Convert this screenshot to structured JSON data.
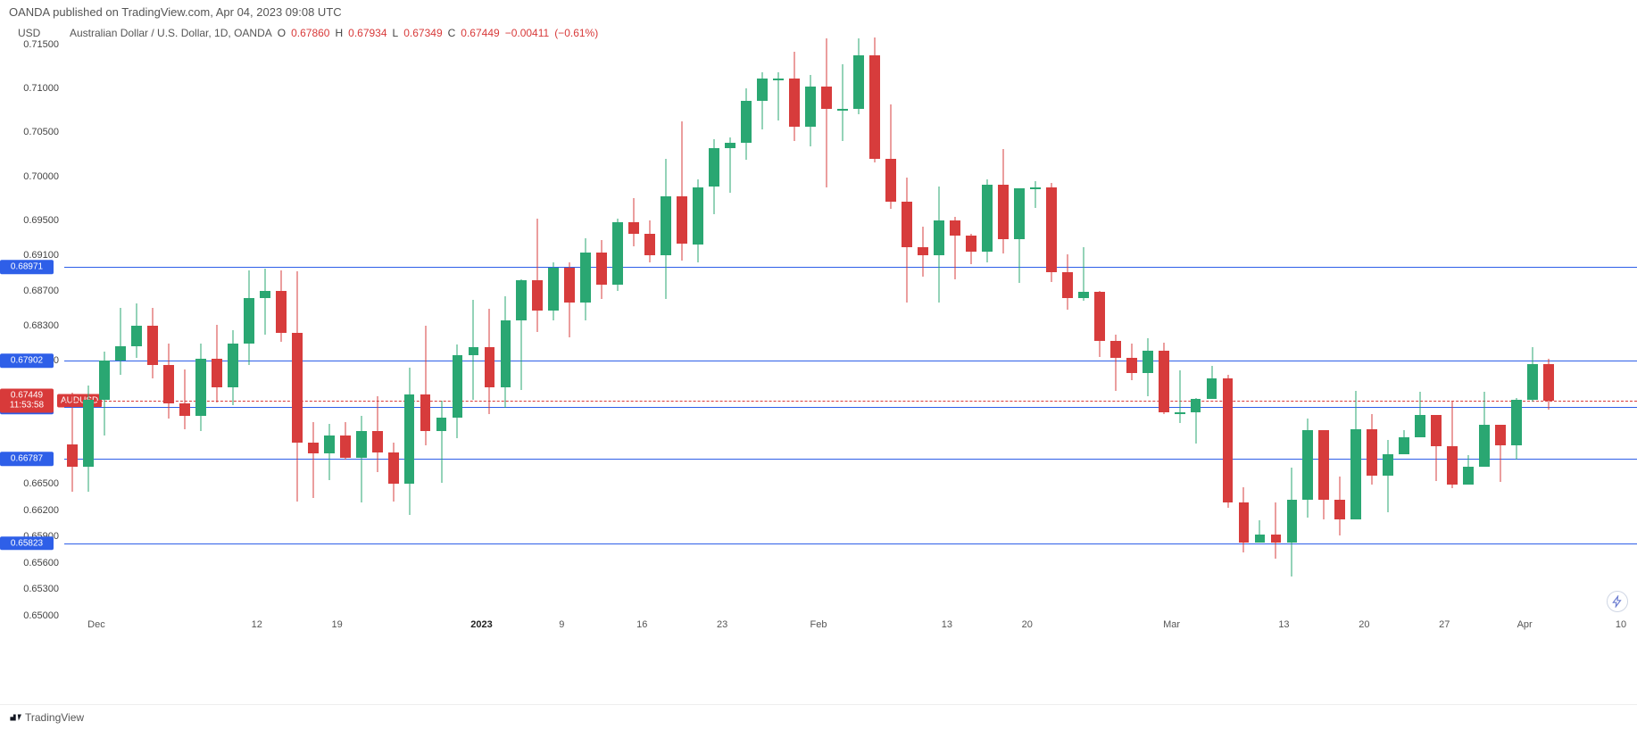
{
  "header": {
    "published_line": "OANDA published on TradingView.com, Apr 04, 2023 09:08 UTC"
  },
  "legend": {
    "usd": "USD",
    "symbol": "Australian Dollar / U.S. Dollar, 1D, OANDA",
    "o_label": "O",
    "o_val": "0.67860",
    "h_label": "H",
    "h_val": "0.67934",
    "l_label": "L",
    "l_val": "0.67349",
    "c_label": "C",
    "c_val": "0.67449",
    "chg": "−0.00411",
    "chg_pct": "(−0.61%)",
    "red": "#d83a3a"
  },
  "axis": {
    "ymin": 0.65,
    "ymax": 0.715,
    "yticks": [
      0.715,
      0.71,
      0.705,
      0.7,
      0.695,
      0.691,
      0.687,
      0.683,
      0.679,
      0.665,
      0.662,
      0.659,
      0.656,
      0.653,
      0.65
    ],
    "ytick_labels": [
      "0.71500",
      "0.71000",
      "0.70500",
      "0.70000",
      "0.69500",
      "0.69100",
      "0.68700",
      "0.68300",
      "0.67900",
      "0.66500",
      "0.66200",
      "0.65900",
      "0.65600",
      "0.65300",
      "0.65000"
    ],
    "text_color": "#444"
  },
  "xaxis": {
    "labels": [
      {
        "i": 2,
        "text": "Dec",
        "bold": false
      },
      {
        "i": 12,
        "text": "12",
        "bold": false
      },
      {
        "i": 17,
        "text": "19",
        "bold": false
      },
      {
        "i": 26,
        "text": "2023",
        "bold": true
      },
      {
        "i": 31,
        "text": "9",
        "bold": false
      },
      {
        "i": 36,
        "text": "16",
        "bold": false
      },
      {
        "i": 41,
        "text": "23",
        "bold": false
      },
      {
        "i": 47,
        "text": "Feb",
        "bold": false
      },
      {
        "i": 55,
        "text": "13",
        "bold": false
      },
      {
        "i": 60,
        "text": "20",
        "bold": false
      },
      {
        "i": 69,
        "text": "Mar",
        "bold": false
      },
      {
        "i": 76,
        "text": "13",
        "bold": false
      },
      {
        "i": 81,
        "text": "20",
        "bold": false
      },
      {
        "i": 86,
        "text": "27",
        "bold": false
      },
      {
        "i": 91,
        "text": "Apr",
        "bold": false
      },
      {
        "i": 97,
        "text": "10",
        "bold": false
      }
    ]
  },
  "hlines": [
    {
      "y": 0.68971,
      "label": "0.68971",
      "color": "#2e5fe8",
      "box": "#2e5fe8"
    },
    {
      "y": 0.67902,
      "label": "0.67902",
      "color": "#2e5fe8",
      "box": "#2e5fe8"
    },
    {
      "y": 0.67374,
      "label": "0.67374",
      "color": "#2e5fe8",
      "box": "#2e5fe8"
    },
    {
      "y": 0.66787,
      "label": "0.66787",
      "color": "#2e5fe8",
      "box": "#2e5fe8"
    },
    {
      "y": 0.65823,
      "label": "0.65823",
      "color": "#2e5fe8",
      "box": "#2e5fe8"
    }
  ],
  "price_line": {
    "y": 0.67449,
    "label": "0.67449",
    "countdown": "11:53:58",
    "box_bg": "#d83a3a",
    "ticker_box": "AUDUSD",
    "ticker_bg": "#d83a3a",
    "line_color": "#d83a3a"
  },
  "colors": {
    "up": "#2aa772",
    "up_border": "#2aa772",
    "down": "#d73c3c",
    "down_border": "#d73c3c",
    "bg": "#ffffff"
  },
  "candles": [
    {
      "o": 0.6695,
      "h": 0.6754,
      "l": 0.6641,
      "c": 0.667
    },
    {
      "o": 0.667,
      "h": 0.6762,
      "l": 0.6641,
      "c": 0.6746
    },
    {
      "o": 0.6746,
      "h": 0.6801,
      "l": 0.6705,
      "c": 0.679
    },
    {
      "o": 0.679,
      "h": 0.685,
      "l": 0.6774,
      "c": 0.6807
    },
    {
      "o": 0.6807,
      "h": 0.6855,
      "l": 0.6793,
      "c": 0.683
    },
    {
      "o": 0.683,
      "h": 0.685,
      "l": 0.677,
      "c": 0.6785
    },
    {
      "o": 0.6785,
      "h": 0.681,
      "l": 0.6724,
      "c": 0.6742
    },
    {
      "o": 0.6742,
      "h": 0.678,
      "l": 0.6712,
      "c": 0.6727
    },
    {
      "o": 0.6727,
      "h": 0.681,
      "l": 0.671,
      "c": 0.6792
    },
    {
      "o": 0.6792,
      "h": 0.6831,
      "l": 0.6743,
      "c": 0.676
    },
    {
      "o": 0.676,
      "h": 0.6825,
      "l": 0.674,
      "c": 0.681
    },
    {
      "o": 0.681,
      "h": 0.6893,
      "l": 0.6785,
      "c": 0.6862
    },
    {
      "o": 0.6862,
      "h": 0.6895,
      "l": 0.682,
      "c": 0.687
    },
    {
      "o": 0.687,
      "h": 0.6893,
      "l": 0.6812,
      "c": 0.6822
    },
    {
      "o": 0.6822,
      "h": 0.6892,
      "l": 0.663,
      "c": 0.6697
    },
    {
      "o": 0.6697,
      "h": 0.672,
      "l": 0.6634,
      "c": 0.6685
    },
    {
      "o": 0.6685,
      "h": 0.6718,
      "l": 0.6654,
      "c": 0.6705
    },
    {
      "o": 0.6705,
      "h": 0.672,
      "l": 0.6678,
      "c": 0.668
    },
    {
      "o": 0.668,
      "h": 0.6727,
      "l": 0.6629,
      "c": 0.671
    },
    {
      "o": 0.671,
      "h": 0.675,
      "l": 0.6664,
      "c": 0.6686
    },
    {
      "o": 0.6686,
      "h": 0.6697,
      "l": 0.663,
      "c": 0.665
    },
    {
      "o": 0.665,
      "h": 0.6782,
      "l": 0.6615,
      "c": 0.6752
    },
    {
      "o": 0.6752,
      "h": 0.683,
      "l": 0.6694,
      "c": 0.671
    },
    {
      "o": 0.671,
      "h": 0.6745,
      "l": 0.6651,
      "c": 0.6725
    },
    {
      "o": 0.6725,
      "h": 0.6809,
      "l": 0.6702,
      "c": 0.6797
    },
    {
      "o": 0.6797,
      "h": 0.686,
      "l": 0.6746,
      "c": 0.6806
    },
    {
      "o": 0.6806,
      "h": 0.6849,
      "l": 0.673,
      "c": 0.676
    },
    {
      "o": 0.676,
      "h": 0.6864,
      "l": 0.6737,
      "c": 0.6836
    },
    {
      "o": 0.6836,
      "h": 0.6883,
      "l": 0.6757,
      "c": 0.6882
    },
    {
      "o": 0.6882,
      "h": 0.6952,
      "l": 0.6823,
      "c": 0.6847
    },
    {
      "o": 0.6847,
      "h": 0.6902,
      "l": 0.6836,
      "c": 0.6896
    },
    {
      "o": 0.6896,
      "h": 0.6902,
      "l": 0.6817,
      "c": 0.6856
    },
    {
      "o": 0.6856,
      "h": 0.693,
      "l": 0.6836,
      "c": 0.6913
    },
    {
      "o": 0.6913,
      "h": 0.6928,
      "l": 0.6861,
      "c": 0.6877
    },
    {
      "o": 0.6877,
      "h": 0.6952,
      "l": 0.687,
      "c": 0.6948
    },
    {
      "o": 0.6948,
      "h": 0.6975,
      "l": 0.692,
      "c": 0.6935
    },
    {
      "o": 0.6935,
      "h": 0.695,
      "l": 0.6902,
      "c": 0.691
    },
    {
      "o": 0.691,
      "h": 0.702,
      "l": 0.6861,
      "c": 0.6977
    },
    {
      "o": 0.6977,
      "h": 0.7063,
      "l": 0.6904,
      "c": 0.6923
    },
    {
      "o": 0.6923,
      "h": 0.6997,
      "l": 0.6902,
      "c": 0.6988
    },
    {
      "o": 0.6988,
      "h": 0.7042,
      "l": 0.6957,
      "c": 0.7032
    },
    {
      "o": 0.7032,
      "h": 0.7044,
      "l": 0.6981,
      "c": 0.7038
    },
    {
      "o": 0.7038,
      "h": 0.71,
      "l": 0.7019,
      "c": 0.7086
    },
    {
      "o": 0.7086,
      "h": 0.7119,
      "l": 0.7054,
      "c": 0.7111
    },
    {
      "o": 0.7111,
      "h": 0.7119,
      "l": 0.7064,
      "c": 0.7111
    },
    {
      "o": 0.7111,
      "h": 0.7142,
      "l": 0.704,
      "c": 0.7057
    },
    {
      "o": 0.7057,
      "h": 0.7115,
      "l": 0.7034,
      "c": 0.7102
    },
    {
      "o": 0.7102,
      "h": 0.7157,
      "l": 0.6987,
      "c": 0.7077
    },
    {
      "o": 0.7077,
      "h": 0.7128,
      "l": 0.704,
      "c": 0.7077
    },
    {
      "o": 0.7077,
      "h": 0.7157,
      "l": 0.7071,
      "c": 0.7138
    },
    {
      "o": 0.7138,
      "h": 0.7158,
      "l": 0.7016,
      "c": 0.702
    },
    {
      "o": 0.702,
      "h": 0.7082,
      "l": 0.6963,
      "c": 0.6971
    },
    {
      "o": 0.6971,
      "h": 0.6999,
      "l": 0.6856,
      "c": 0.6919
    },
    {
      "o": 0.6919,
      "h": 0.6943,
      "l": 0.6886,
      "c": 0.691
    },
    {
      "o": 0.691,
      "h": 0.6989,
      "l": 0.6856,
      "c": 0.695
    },
    {
      "o": 0.695,
      "h": 0.6954,
      "l": 0.6883,
      "c": 0.6933
    },
    {
      "o": 0.6933,
      "h": 0.6935,
      "l": 0.69,
      "c": 0.6914
    },
    {
      "o": 0.6914,
      "h": 0.6997,
      "l": 0.6902,
      "c": 0.6991
    },
    {
      "o": 0.6991,
      "h": 0.7031,
      "l": 0.6912,
      "c": 0.6929
    },
    {
      "o": 0.6929,
      "h": 0.6986,
      "l": 0.6879,
      "c": 0.6986
    },
    {
      "o": 0.6986,
      "h": 0.6995,
      "l": 0.6964,
      "c": 0.6987
    },
    {
      "o": 0.6987,
      "h": 0.6993,
      "l": 0.688,
      "c": 0.6891
    },
    {
      "o": 0.6891,
      "h": 0.6911,
      "l": 0.6848,
      "c": 0.6862
    },
    {
      "o": 0.6862,
      "h": 0.6919,
      "l": 0.6858,
      "c": 0.6869
    },
    {
      "o": 0.6869,
      "h": 0.687,
      "l": 0.6795,
      "c": 0.6813
    },
    {
      "o": 0.6813,
      "h": 0.682,
      "l": 0.6756,
      "c": 0.6794
    },
    {
      "o": 0.6794,
      "h": 0.681,
      "l": 0.6768,
      "c": 0.6776
    },
    {
      "o": 0.6776,
      "h": 0.6816,
      "l": 0.675,
      "c": 0.6802
    },
    {
      "o": 0.6802,
      "h": 0.6811,
      "l": 0.673,
      "c": 0.6732
    },
    {
      "o": 0.6732,
      "h": 0.6779,
      "l": 0.6719,
      "c": 0.6732
    },
    {
      "o": 0.6732,
      "h": 0.6748,
      "l": 0.6696,
      "c": 0.6747
    },
    {
      "o": 0.6747,
      "h": 0.6784,
      "l": 0.6764,
      "c": 0.677
    },
    {
      "o": 0.677,
      "h": 0.6774,
      "l": 0.6623,
      "c": 0.6629
    },
    {
      "o": 0.6629,
      "h": 0.6646,
      "l": 0.6572,
      "c": 0.6583
    },
    {
      "o": 0.6583,
      "h": 0.6609,
      "l": 0.6583,
      "c": 0.6592
    },
    {
      "o": 0.6592,
      "h": 0.6629,
      "l": 0.6565,
      "c": 0.6583
    },
    {
      "o": 0.6583,
      "h": 0.6669,
      "l": 0.6545,
      "c": 0.6632
    },
    {
      "o": 0.6632,
      "h": 0.6724,
      "l": 0.6612,
      "c": 0.6711
    },
    {
      "o": 0.6711,
      "h": 0.6705,
      "l": 0.661,
      "c": 0.6632
    },
    {
      "o": 0.6632,
      "h": 0.6658,
      "l": 0.6591,
      "c": 0.661
    },
    {
      "o": 0.661,
      "h": 0.6756,
      "l": 0.6627,
      "c": 0.6712
    },
    {
      "o": 0.6712,
      "h": 0.673,
      "l": 0.6649,
      "c": 0.6659
    },
    {
      "o": 0.6659,
      "h": 0.67,
      "l": 0.6618,
      "c": 0.6684
    },
    {
      "o": 0.6684,
      "h": 0.6711,
      "l": 0.6702,
      "c": 0.6703
    },
    {
      "o": 0.6703,
      "h": 0.6755,
      "l": 0.6703,
      "c": 0.6729
    },
    {
      "o": 0.6729,
      "h": 0.6708,
      "l": 0.6653,
      "c": 0.6693
    },
    {
      "o": 0.6693,
      "h": 0.6744,
      "l": 0.6645,
      "c": 0.6649
    },
    {
      "o": 0.6649,
      "h": 0.6683,
      "l": 0.6654,
      "c": 0.667
    },
    {
      "o": 0.667,
      "h": 0.6755,
      "l": 0.6683,
      "c": 0.6717
    },
    {
      "o": 0.6717,
      "h": 0.6716,
      "l": 0.6652,
      "c": 0.6694
    },
    {
      "o": 0.6694,
      "h": 0.6748,
      "l": 0.6678,
      "c": 0.6746
    },
    {
      "o": 0.6746,
      "h": 0.6806,
      "l": 0.6744,
      "c": 0.6786
    },
    {
      "o": 0.6786,
      "h": 0.6793,
      "l": 0.6735,
      "c": 0.6745
    }
  ],
  "footer": {
    "brand": "TradingView"
  }
}
